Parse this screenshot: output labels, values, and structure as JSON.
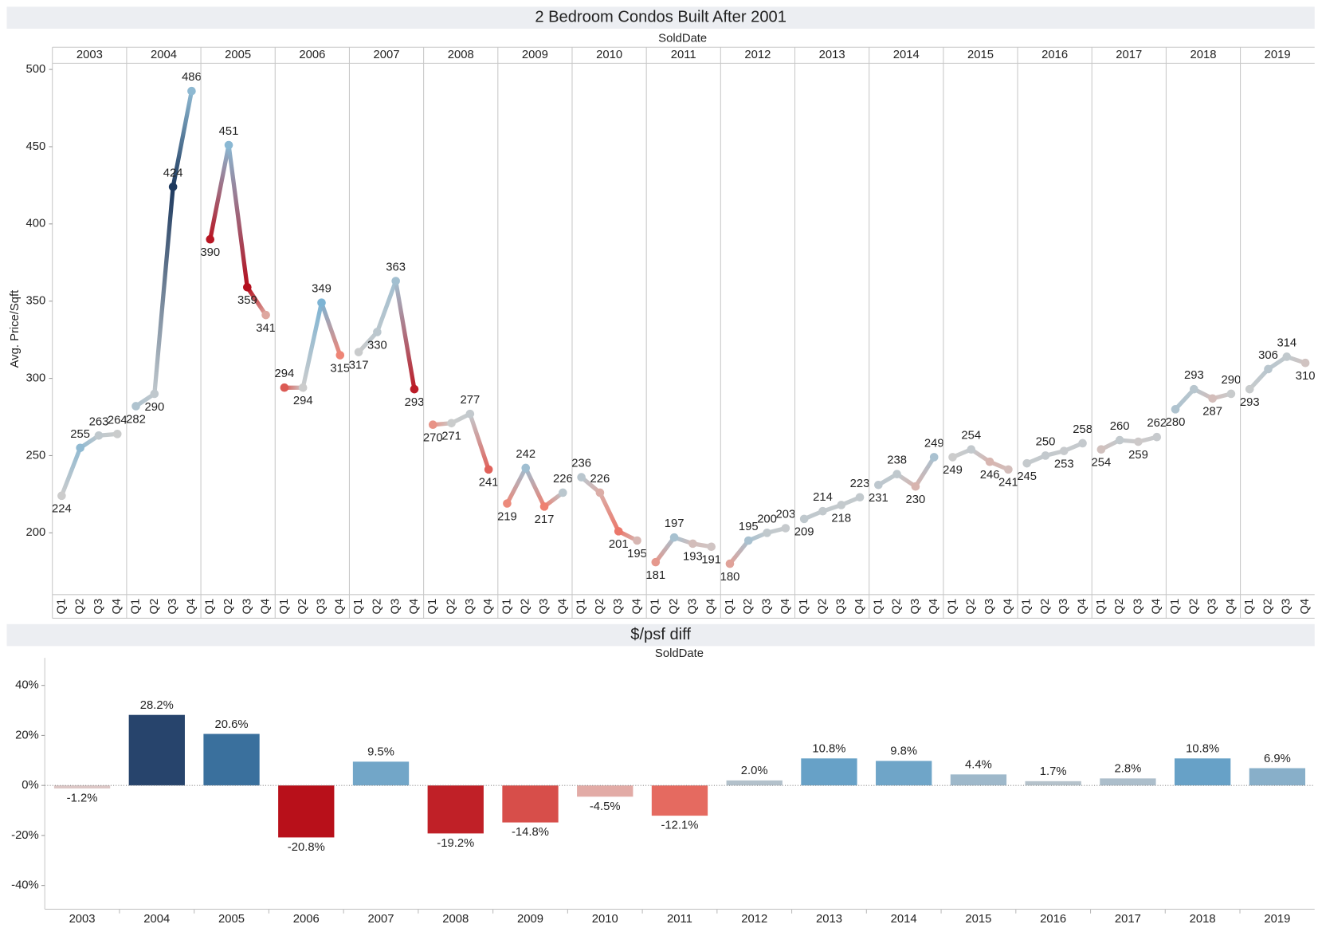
{
  "chart_data": [
    {
      "type": "line",
      "title": "2 Bedroom Condos Built After 2001",
      "xlabel": "SoldDate",
      "ylabel": "Avg. Price/Sqft",
      "quarters": [
        "Q1",
        "Q2",
        "Q3",
        "Q4"
      ],
      "series": [
        {
          "name": "2003",
          "values": [
            224,
            255,
            263,
            264
          ]
        },
        {
          "name": "2004",
          "values": [
            282,
            290,
            424,
            486
          ]
        },
        {
          "name": "2005",
          "values": [
            390,
            451,
            359,
            341
          ]
        },
        {
          "name": "2006",
          "values": [
            294,
            294,
            349,
            315
          ]
        },
        {
          "name": "2007",
          "values": [
            317,
            330,
            363,
            293
          ]
        },
        {
          "name": "2008",
          "values": [
            270,
            271,
            277,
            241
          ]
        },
        {
          "name": "2009",
          "values": [
            219,
            242,
            217,
            226
          ]
        },
        {
          "name": "2010",
          "values": [
            236,
            226,
            201,
            195
          ]
        },
        {
          "name": "2011",
          "values": [
            181,
            197,
            193,
            191
          ]
        },
        {
          "name": "2012",
          "values": [
            180,
            195,
            200,
            203
          ]
        },
        {
          "name": "2013",
          "values": [
            209,
            214,
            218,
            223
          ]
        },
        {
          "name": "2014",
          "values": [
            231,
            238,
            230,
            249
          ]
        },
        {
          "name": "2015",
          "values": [
            249,
            254,
            246,
            241
          ]
        },
        {
          "name": "2016",
          "values": [
            245,
            250,
            253,
            258
          ]
        },
        {
          "name": "2017",
          "values": [
            254,
            260,
            259,
            262
          ]
        },
        {
          "name": "2018",
          "values": [
            280,
            293,
            287,
            290
          ]
        },
        {
          "name": "2019",
          "values": [
            293,
            306,
            314,
            310
          ]
        }
      ],
      "ylim": [
        160,
        504
      ],
      "yticks": [
        200,
        250,
        300,
        350,
        400,
        450,
        500
      ],
      "color_scale": {
        "negative": [
          "#cccccc",
          "#f08272",
          "#b40f1e"
        ],
        "positive": [
          "#cccccc",
          "#6aaed6",
          "#1e3a5f"
        ]
      }
    },
    {
      "type": "bar",
      "title": "$/psf diff",
      "xlabel": "SoldDate",
      "categories": [
        "2003",
        "2004",
        "2005",
        "2006",
        "2007",
        "2008",
        "2009",
        "2010",
        "2011",
        "2012",
        "2013",
        "2014",
        "2015",
        "2016",
        "2017",
        "2018",
        "2019"
      ],
      "values": [
        -1.2,
        28.2,
        20.6,
        -20.8,
        9.5,
        -19.2,
        -14.8,
        -4.5,
        -12.1,
        2.0,
        10.8,
        9.8,
        4.4,
        1.7,
        2.8,
        10.8,
        6.9
      ],
      "value_labels": [
        "-1.2%",
        "28.2%",
        "20.6%",
        "-20.8%",
        "9.5%",
        "-19.2%",
        "-14.8%",
        "-4.5%",
        "-12.1%",
        "2.0%",
        "10.8%",
        "9.8%",
        "4.4%",
        "1.7%",
        "2.8%",
        "10.8%",
        "6.9%"
      ],
      "ylim": [
        -49.5,
        51
      ],
      "yticks": [
        {
          "value": -40,
          "label": "-40%"
        },
        {
          "value": -20,
          "label": "-20%"
        },
        {
          "value": 0,
          "label": "0%"
        },
        {
          "value": 20,
          "label": "20%"
        },
        {
          "value": 40,
          "label": "40%"
        }
      ],
      "color_scale": {
        "negative": [
          "#d8d0d0",
          "#ee7b6e",
          "#b8101a"
        ],
        "positive": [
          "#c4c8cc",
          "#4a95c6",
          "#27446c"
        ]
      }
    }
  ]
}
